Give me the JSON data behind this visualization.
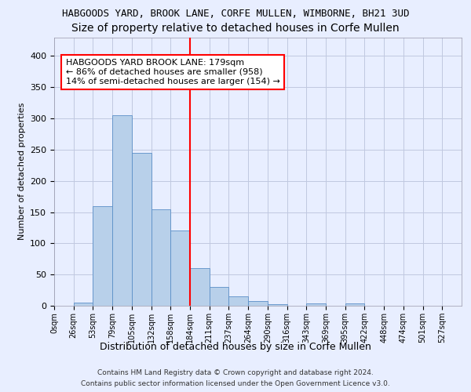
{
  "title1": "HABGOODS YARD, BROOK LANE, CORFE MULLEN, WIMBORNE, BH21 3UD",
  "title2": "Size of property relative to detached houses in Corfe Mullen",
  "xlabel": "Distribution of detached houses by size in Corfe Mullen",
  "ylabel": "Number of detached properties",
  "bar_values": [
    0,
    5,
    160,
    305,
    245,
    155,
    120,
    60,
    30,
    15,
    8,
    3,
    0,
    4,
    0,
    4,
    0,
    0,
    0,
    0,
    0
  ],
  "bin_labels": [
    "0sqm",
    "26sqm",
    "53sqm",
    "79sqm",
    "105sqm",
    "132sqm",
    "158sqm",
    "184sqm",
    "211sqm",
    "237sqm",
    "264sqm",
    "290sqm",
    "316sqm",
    "343sqm",
    "369sqm",
    "395sqm",
    "422sqm",
    "448sqm",
    "474sqm",
    "501sqm",
    "527sqm"
  ],
  "bar_color": "#b8d0ea",
  "bar_edge_color": "#5b8fc7",
  "vline_color": "red",
  "vline_x": 7.0,
  "annotation_text": "HABGOODS YARD BROOK LANE: 179sqm\n← 86% of detached houses are smaller (958)\n14% of semi-detached houses are larger (154) →",
  "annotation_box_color": "white",
  "annotation_box_edgecolor": "red",
  "ylim_max": 430,
  "yticks": [
    0,
    50,
    100,
    150,
    200,
    250,
    300,
    350,
    400
  ],
  "footer1": "Contains HM Land Registry data © Crown copyright and database right 2024.",
  "footer2": "Contains public sector information licensed under the Open Government Licence v3.0.",
  "bg_color": "#e8eeff",
  "grid_color": "#c0c8e0",
  "title1_fontsize": 9,
  "title2_fontsize": 10,
  "annot_fontsize": 8,
  "ylabel_fontsize": 8,
  "xlabel_fontsize": 9
}
